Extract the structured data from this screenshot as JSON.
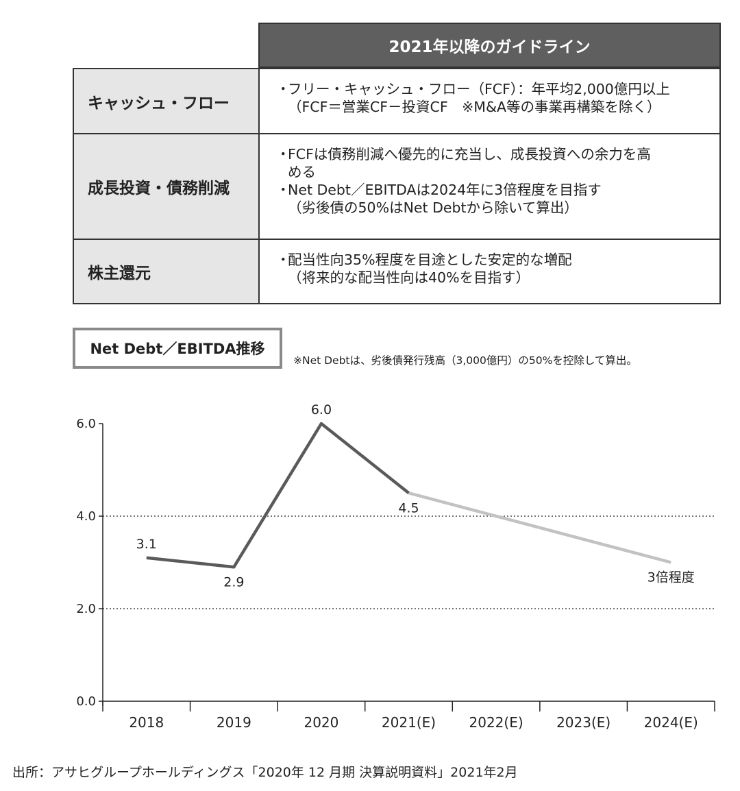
{
  "guidelines": {
    "header": "2021年以降のガイドライン",
    "rows": [
      {
        "label": "キャッシュ・フロー",
        "items": [
          {
            "bullet": "・",
            "lines": [
              "フリー・キャッシュ・フロー（FCF）：年平均2,000億円以上"
            ]
          },
          {
            "bullet": "",
            "lines": [
              "（FCF＝営業CF－投資CF　※M&A等の事業再構築を除く）"
            ]
          }
        ]
      },
      {
        "label": "成長投資・債務削減",
        "items": [
          {
            "bullet": "・",
            "lines": [
              "FCFは債務削減へ優先的に充当し、成長投資への余力を高",
              "める"
            ]
          },
          {
            "bullet": "・",
            "lines": [
              "Net Debt／EBITDAは2024年に3倍程度を目指す"
            ]
          },
          {
            "bullet": "",
            "lines": [
              "（劣後債の50%はNet Debtから除いて算出）"
            ]
          }
        ]
      },
      {
        "label": "株主還元",
        "items": [
          {
            "bullet": "・",
            "lines": [
              "配当性向35%程度を目途とした安定的な増配"
            ]
          },
          {
            "bullet": "",
            "lines": [
              "（将来的な配当性向は40%を目指す）"
            ]
          }
        ]
      }
    ]
  },
  "chart_header": {
    "title": "Net Debt／EBITDA推移",
    "note": "※Net Debtは、劣後債発行残高（3,000億円）の50%を控除して算出。"
  },
  "chart_data": {
    "type": "line",
    "categories": [
      "2018",
      "2019",
      "2020",
      "2021(E)",
      "2022(E)",
      "2023(E)",
      "2024(E)"
    ],
    "ylim": [
      0,
      6
    ],
    "yticks": [
      "0.0",
      "2.0",
      "4.0",
      "6.0"
    ],
    "dotted_gridlines": [
      2,
      4
    ],
    "series": [
      {
        "kind": "actual",
        "color": "#5a5a5a",
        "x": [
          "2018",
          "2019",
          "2020",
          "2021(E)"
        ],
        "values": [
          3.1,
          2.9,
          6.0,
          4.5
        ]
      },
      {
        "kind": "target",
        "color": "#c2c2c2",
        "x": [
          "2021(E)",
          "2024(E)"
        ],
        "values": [
          4.5,
          3.0
        ]
      }
    ],
    "data_labels": [
      {
        "x": "2018",
        "value": 3.1,
        "text": "3.1",
        "pos": "above"
      },
      {
        "x": "2019",
        "value": 2.9,
        "text": "2.9",
        "pos": "below"
      },
      {
        "x": "2020",
        "value": 6.0,
        "text": "6.0",
        "pos": "above"
      },
      {
        "x": "2021(E)",
        "value": 4.5,
        "text": "4.5",
        "pos": "below"
      },
      {
        "x": "2024(E)",
        "value": 3.0,
        "text": "3倍程度",
        "pos": "below"
      }
    ]
  },
  "source": "出所：アサヒグループホールディングス「2020年 12 月期 決算説明資料」2021年2月"
}
